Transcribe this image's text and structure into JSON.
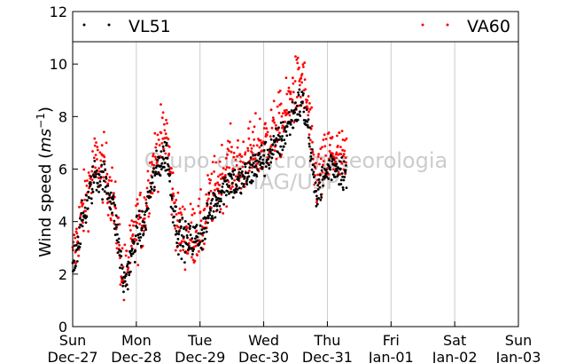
{
  "chart_data": {
    "type": "scatter",
    "ylabel": "Wind speed ($ms^{-1}$)",
    "ylabel_main": "Wind speed (",
    "ylabel_unit_base": "ms",
    "ylabel_unit_exp": "−1",
    "ylabel_close": ")",
    "ylim": [
      0,
      12
    ],
    "yticks": [
      0,
      2,
      4,
      6,
      8,
      10,
      12
    ],
    "xlim": [
      0,
      7
    ],
    "xticks": [
      {
        "x": 0,
        "day": "Sun",
        "date": "Dec-27"
      },
      {
        "x": 1,
        "day": "Mon",
        "date": "Dec-28"
      },
      {
        "x": 2,
        "day": "Tue",
        "date": "Dec-29"
      },
      {
        "x": 3,
        "day": "Wed",
        "date": "Dec-30"
      },
      {
        "x": 4,
        "day": "Thu",
        "date": "Dec-31"
      },
      {
        "x": 5,
        "day": "Fri",
        "date": "Jan-01"
      },
      {
        "x": 6,
        "day": "Sat",
        "date": "Jan-02"
      },
      {
        "x": 7,
        "day": "Sun",
        "date": "Jan-03"
      }
    ],
    "grid": "vertical",
    "legend_position": "top",
    "watermark_line1": "Grupo de Micrometeorologia",
    "watermark_line2": "IAG/USP",
    "series": [
      {
        "name": "VL51",
        "color": "#000000",
        "trend": [
          [
            0.0,
            2.2
          ],
          [
            0.1,
            3.5
          ],
          [
            0.22,
            4.6
          ],
          [
            0.35,
            5.8
          ],
          [
            0.5,
            5.6
          ],
          [
            0.62,
            4.8
          ],
          [
            0.72,
            3.2
          ],
          [
            0.8,
            1.6
          ],
          [
            0.9,
            2.4
          ],
          [
            1.0,
            3.5
          ],
          [
            1.12,
            3.8
          ],
          [
            1.2,
            5.0
          ],
          [
            1.35,
            6.2
          ],
          [
            1.48,
            6.6
          ],
          [
            1.55,
            5.0
          ],
          [
            1.65,
            3.6
          ],
          [
            1.8,
            3.2
          ],
          [
            1.95,
            3.4
          ],
          [
            2.05,
            3.6
          ],
          [
            2.15,
            4.4
          ],
          [
            2.3,
            5.0
          ],
          [
            2.45,
            5.6
          ],
          [
            2.6,
            5.4
          ],
          [
            2.75,
            5.8
          ],
          [
            2.9,
            6.2
          ],
          [
            3.0,
            6.4
          ],
          [
            3.1,
            6.6
          ],
          [
            3.3,
            7.2
          ],
          [
            3.45,
            8.0
          ],
          [
            3.6,
            8.6
          ],
          [
            3.7,
            7.6
          ],
          [
            3.8,
            5.2
          ],
          [
            3.9,
            5.4
          ],
          [
            4.05,
            6.2
          ],
          [
            4.2,
            6.0
          ],
          [
            4.3,
            5.8
          ]
        ],
        "spread": 0.9
      },
      {
        "name": "VA60",
        "color": "#ff0000",
        "trend": [
          [
            0.0,
            2.4
          ],
          [
            0.1,
            3.8
          ],
          [
            0.22,
            5.0
          ],
          [
            0.35,
            6.2
          ],
          [
            0.5,
            6.0
          ],
          [
            0.62,
            5.0
          ],
          [
            0.72,
            3.4
          ],
          [
            0.8,
            1.8
          ],
          [
            0.9,
            2.6
          ],
          [
            1.0,
            3.8
          ],
          [
            1.12,
            4.2
          ],
          [
            1.2,
            5.6
          ],
          [
            1.35,
            6.8
          ],
          [
            1.48,
            7.4
          ],
          [
            1.55,
            5.4
          ],
          [
            1.65,
            3.8
          ],
          [
            1.8,
            3.4
          ],
          [
            1.95,
            3.6
          ],
          [
            2.05,
            3.8
          ],
          [
            2.15,
            4.8
          ],
          [
            2.3,
            5.6
          ],
          [
            2.45,
            6.2
          ],
          [
            2.6,
            6.0
          ],
          [
            2.75,
            6.4
          ],
          [
            2.9,
            6.8
          ],
          [
            3.0,
            7.0
          ],
          [
            3.1,
            7.2
          ],
          [
            3.3,
            7.8
          ],
          [
            3.45,
            8.8
          ],
          [
            3.6,
            9.4
          ],
          [
            3.7,
            8.2
          ],
          [
            3.8,
            5.6
          ],
          [
            3.9,
            5.8
          ],
          [
            4.05,
            6.6
          ],
          [
            4.2,
            6.4
          ],
          [
            4.3,
            6.2
          ]
        ],
        "spread": 1.6
      }
    ],
    "x_end": 4.3,
    "points_per_series": 700
  }
}
